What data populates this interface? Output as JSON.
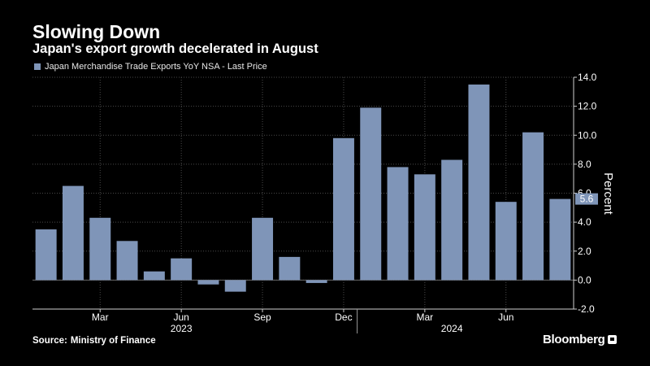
{
  "header": {
    "title": "Slowing Down",
    "subtitle": "Japan's export growth decelerated in August"
  },
  "legend": {
    "label": "Japan Merchandise Trade Exports YoY NSA - Last Price"
  },
  "footer": {
    "source_label": "Source:",
    "source_value": "Ministry of Finance",
    "brand": "Bloomberg"
  },
  "colors": {
    "background": "#000000",
    "bar": "#7f95b8",
    "grid": "#4a4a4a",
    "text": "#ffffff"
  },
  "chart_data": {
    "type": "bar",
    "title": "Slowing Down",
    "subtitle": "Japan's export growth decelerated in August",
    "categories": [
      "2023-01",
      "2023-02",
      "2023-03",
      "2023-04",
      "2023-05",
      "2023-06",
      "2023-07",
      "2023-08",
      "2023-09",
      "2023-10",
      "2023-11",
      "2023-12",
      "2024-01",
      "2024-02",
      "2024-03",
      "2024-04",
      "2024-05",
      "2024-06",
      "2024-07",
      "2024-08"
    ],
    "series": [
      {
        "name": "Japan Merchandise Trade Exports YoY NSA - Last Price",
        "values": [
          3.5,
          6.5,
          4.3,
          2.7,
          0.6,
          1.5,
          -0.3,
          -0.8,
          4.3,
          1.6,
          -0.2,
          9.8,
          11.9,
          7.8,
          7.3,
          8.3,
          13.5,
          5.4,
          10.2,
          5.6
        ]
      }
    ],
    "ylabel": "Percent",
    "xlabel": "",
    "ylim": [
      -2.0,
      14.0
    ],
    "y_ticks": [
      "-2.0",
      "0.0",
      "2.0",
      "4.0",
      "6.0",
      "8.0",
      "10.0",
      "12.0",
      "14.0"
    ],
    "x_tick_labels": [
      {
        "label": "Mar",
        "index": 2
      },
      {
        "label": "Jun",
        "index": 5
      },
      {
        "label": "Sep",
        "index": 8
      },
      {
        "label": "Dec",
        "index": 11
      },
      {
        "label": "Mar",
        "index": 14
      },
      {
        "label": "Jun",
        "index": 17
      }
    ],
    "year_labels": [
      {
        "label": "2023",
        "center": 5.5
      },
      {
        "label": "2024",
        "center": 15.5
      }
    ],
    "last_value_label": "5.6",
    "grid": true,
    "legend_position": "top-left"
  }
}
